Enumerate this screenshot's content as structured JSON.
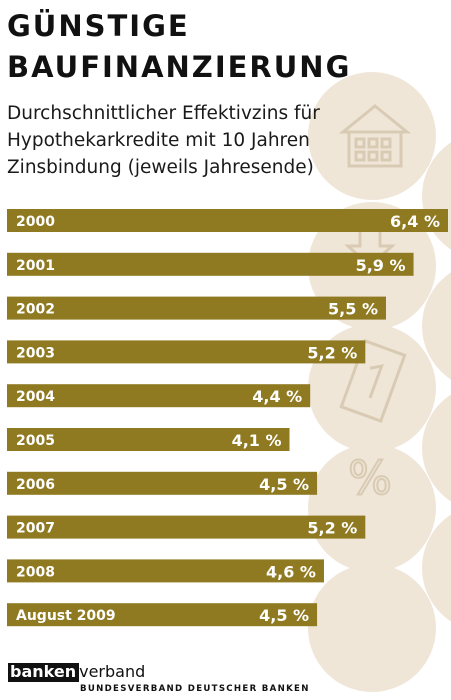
{
  "header": {
    "title_line1": "GÜNSTIGE",
    "title_line2": "BAUFINANZIERUNG",
    "subtitle_line1": "Durchschnittlicher Effektivzins für",
    "subtitle_line2": "Hypothekarkredite mit 10 Jahren",
    "subtitle_line3": "Zinsbindung (jeweils Jahresende)"
  },
  "colors": {
    "bar": "#8f7a21",
    "background_circle": "#efe6d8",
    "symbol_outline": "#d9cbb3",
    "bar_text": "#ffffff"
  },
  "chart_data": {
    "type": "bar",
    "orientation": "horizontal",
    "categories": [
      "2000",
      "2001",
      "2002",
      "2003",
      "2004",
      "2005",
      "2006",
      "2007",
      "2008",
      "August 2009"
    ],
    "values": [
      6.4,
      5.9,
      5.5,
      5.2,
      4.4,
      4.1,
      4.5,
      5.2,
      4.6,
      4.5
    ],
    "value_labels": [
      "6,4 %",
      "5,9 %",
      "5,5 %",
      "5,2 %",
      "4,4 %",
      "4,1 %",
      "4,5 %",
      "5,2 %",
      "4,6 %",
      "4,5 %"
    ],
    "title": "GÜNSTIGE BAUFINANZIERUNG",
    "subtitle": "Durchschnittlicher Effektivzins für Hypothekarkredite mit 10 Jahren Zinsbindung (jeweils Jahresende)",
    "xlabel": "",
    "ylabel": "",
    "unit": "%",
    "grid": false,
    "legend": "none"
  },
  "decor_icons": [
    "house-icon",
    "down-arrow-icon",
    "one-euro-note-icon",
    "percent-icon"
  ],
  "footer": {
    "logo_dark_part": "banken",
    "logo_light_part": "verband",
    "tagline": "BUNDESVERBAND DEUTSCHER BANKEN"
  }
}
